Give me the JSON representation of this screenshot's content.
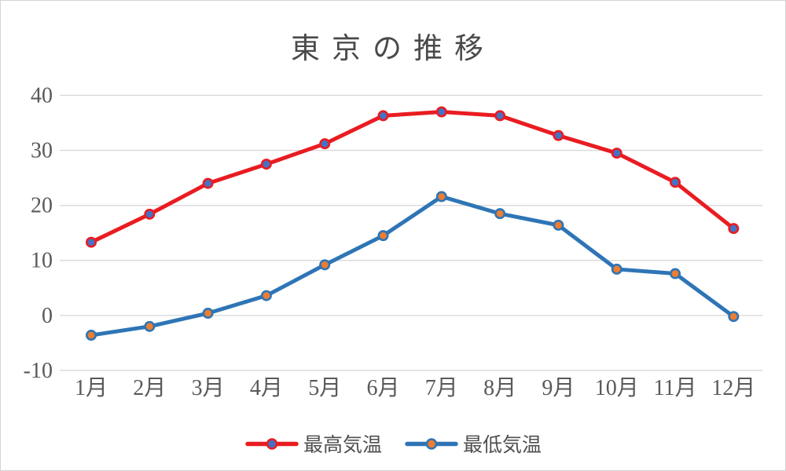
{
  "chart_data": {
    "type": "line",
    "title": "東京の推移",
    "xlabel": "",
    "ylabel": "",
    "categories": [
      "1月",
      "2月",
      "3月",
      "4月",
      "5月",
      "6月",
      "7月",
      "8月",
      "9月",
      "10月",
      "11月",
      "12月"
    ],
    "series": [
      {
        "name": "最高気温",
        "values": [
          13.3,
          18.4,
          24.0,
          27.5,
          31.2,
          36.3,
          37.0,
          36.3,
          32.7,
          29.5,
          24.2,
          15.8
        ],
        "line_color": "#e91c21",
        "marker_fill": "#4472c4"
      },
      {
        "name": "最低気温",
        "values": [
          -3.6,
          -2.0,
          0.4,
          3.6,
          9.2,
          14.5,
          21.6,
          18.5,
          16.4,
          8.4,
          7.6,
          -0.2
        ],
        "line_color": "#2e75b6",
        "marker_fill": "#ed7d31"
      }
    ],
    "ylim": [
      -10,
      40
    ],
    "yticks": [
      40,
      30,
      20,
      10,
      0,
      -10
    ],
    "grid": true,
    "grid_color": "#d9d9d9",
    "text_color": "#595959",
    "legend_position": "bottom"
  }
}
